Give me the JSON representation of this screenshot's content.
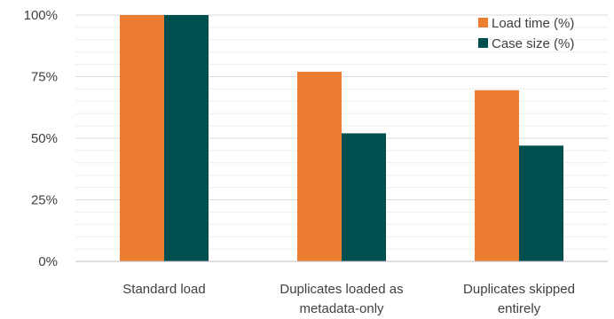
{
  "chart_data": {
    "type": "bar",
    "categories": [
      [
        "Standard load"
      ],
      [
        "Duplicates loaded as",
        "metadata-only"
      ],
      [
        "Duplicates skipped",
        "entirely"
      ]
    ],
    "series": [
      {
        "name": "Load time (%)",
        "values": [
          100,
          77,
          69.5
        ],
        "color": "#ED7D31"
      },
      {
        "name": "Case size (%)",
        "values": [
          100,
          52,
          47
        ],
        "color": "#004F4F"
      }
    ],
    "ylim": [
      0,
      100
    ],
    "yticks": [
      0,
      25,
      50,
      75,
      100
    ],
    "ytick_format": "{v}%",
    "grid": true,
    "legend": "top-right"
  }
}
